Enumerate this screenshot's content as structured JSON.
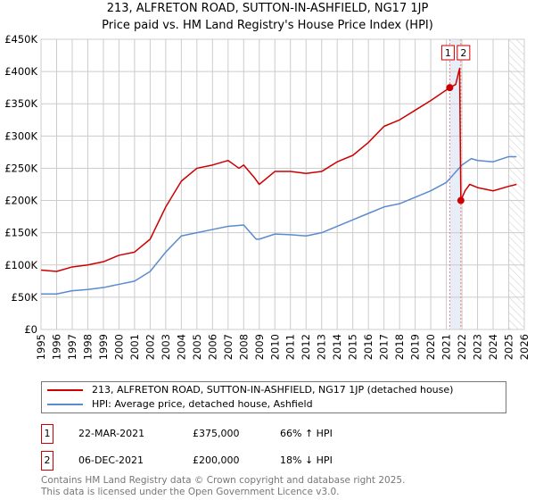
{
  "chart_data": {
    "type": "line",
    "title": "213, ALFRETON ROAD, SUTTON-IN-ASHFIELD, NG17 1JP",
    "subtitle": "Price paid vs. HM Land Registry's House Price Index (HPI)",
    "xlim": [
      1995,
      2026
    ],
    "ylim": [
      0,
      450000
    ],
    "x_ticks": [
      "1995",
      "1996",
      "1997",
      "1998",
      "1999",
      "2000",
      "2001",
      "2002",
      "2003",
      "2004",
      "2005",
      "2006",
      "2007",
      "2008",
      "2009",
      "2010",
      "2011",
      "2012",
      "2013",
      "2014",
      "2015",
      "2016",
      "2017",
      "2018",
      "2019",
      "2020",
      "2021",
      "2022",
      "2023",
      "2024",
      "2025",
      "2026"
    ],
    "y_ticks": [
      {
        "v": 0,
        "label": "£0"
      },
      {
        "v": 50000,
        "label": "£50K"
      },
      {
        "v": 100000,
        "label": "£100K"
      },
      {
        "v": 150000,
        "label": "£150K"
      },
      {
        "v": 200000,
        "label": "£200K"
      },
      {
        "v": 250000,
        "label": "£250K"
      },
      {
        "v": 300000,
        "label": "£300K"
      },
      {
        "v": 350000,
        "label": "£350K"
      },
      {
        "v": 400000,
        "label": "£400K"
      },
      {
        "v": 450000,
        "label": "£450K"
      }
    ],
    "grid": true,
    "series": [
      {
        "name": "213, ALFRETON ROAD, SUTTON-IN-ASHFIELD, NG17 1JP (detached house)",
        "color": "#cc0000",
        "x": [
          1995,
          1996,
          1997,
          1998,
          1999,
          2000,
          2001,
          2002,
          2002.7,
          2003,
          2004,
          2005,
          2006,
          2007,
          2007.7,
          2008,
          2008.7,
          2009,
          2010,
          2011,
          2012,
          2013,
          2014,
          2015,
          2016,
          2017,
          2018,
          2019,
          2020,
          2021.22,
          2021.6,
          2021.85,
          2021.93,
          2022.2,
          2022.5,
          2023,
          2024,
          2025,
          2025.5
        ],
        "y": [
          92000,
          90000,
          97000,
          100000,
          105000,
          115000,
          120000,
          140000,
          175000,
          190000,
          230000,
          250000,
          255000,
          262000,
          250000,
          255000,
          235000,
          225000,
          245000,
          245000,
          242000,
          245000,
          260000,
          270000,
          290000,
          315000,
          325000,
          340000,
          355000,
          375000,
          380000,
          405000,
          200000,
          215000,
          225000,
          220000,
          215000,
          222000,
          225000
        ]
      },
      {
        "name": "HPI: Average price, detached house, Ashfield",
        "color": "#5b8ad0",
        "x": [
          1995,
          1996,
          1997,
          1998,
          1999,
          2000,
          2001,
          2002,
          2003,
          2004,
          2005,
          2006,
          2007,
          2008,
          2008.8,
          2009,
          2010,
          2011,
          2012,
          2013,
          2014,
          2015,
          2016,
          2017,
          2018,
          2019,
          2020,
          2021,
          2022,
          2022.6,
          2023,
          2024,
          2025,
          2025.5
        ],
        "y": [
          55000,
          55000,
          60000,
          62000,
          65000,
          70000,
          75000,
          90000,
          120000,
          145000,
          150000,
          155000,
          160000,
          162000,
          140000,
          140000,
          148000,
          147000,
          145000,
          150000,
          160000,
          170000,
          180000,
          190000,
          195000,
          205000,
          215000,
          228000,
          255000,
          265000,
          262000,
          260000,
          268000,
          268000
        ]
      }
    ],
    "sales": [
      {
        "label": "1",
        "x": 2021.22,
        "y": 375000,
        "date": "22-MAR-2021",
        "price": "£375,000",
        "hpi": "66% ↑ HPI"
      },
      {
        "label": "2",
        "x": 2021.93,
        "y": 200000,
        "date": "06-DEC-2021",
        "price": "£200,000",
        "hpi": "18% ↓ HPI"
      }
    ],
    "hatch_from": 2025,
    "legend_position": "below"
  },
  "footer": [
    "Contains HM Land Registry data © Crown copyright and database right 2025.",
    "This data is licensed under the Open Government Licence v3.0."
  ]
}
